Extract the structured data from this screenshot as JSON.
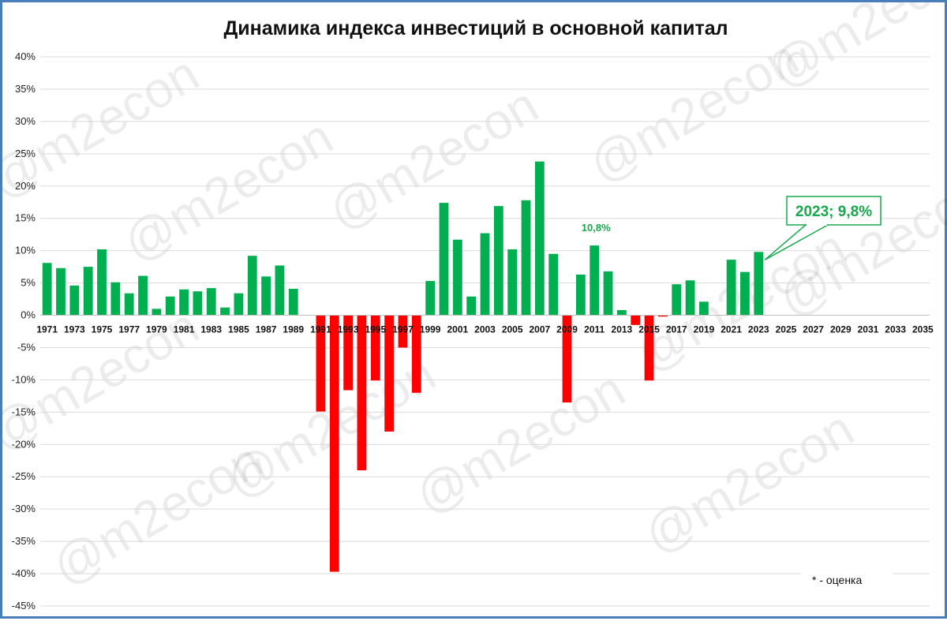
{
  "colors": {
    "positive": "#00b050",
    "negative": "#ff0000",
    "grid": "#d9d9d9",
    "frame": "#4a7ebb",
    "accent": "#18a84e"
  },
  "watermark": "@m2econ",
  "footnote": "* - оценка",
  "chart_data": {
    "type": "bar",
    "title": "Динамика индекса инвестиций в основной капитал",
    "xlabel": "",
    "ylabel": "",
    "ylim": [
      -45,
      40
    ],
    "y_ticks": [
      "40%",
      "35%",
      "30%",
      "25%",
      "20%",
      "15%",
      "10%",
      "5%",
      "0%",
      "-5%",
      "-10%",
      "-15%",
      "-20%",
      "-25%",
      "-30%",
      "-35%",
      "-40%",
      "-45%"
    ],
    "grid": true,
    "categories": [
      "1971",
      "1972",
      "1973",
      "1974",
      "1975",
      "1976",
      "1977",
      "1978",
      "1979",
      "1980",
      "1981",
      "1982",
      "1983",
      "1984",
      "1985",
      "1986",
      "1987",
      "1988",
      "1989",
      "1990",
      "1991",
      "1992",
      "1993",
      "1994",
      "1995",
      "1996",
      "1997",
      "1998",
      "1999",
      "2000",
      "2001",
      "2002",
      "2003",
      "2004",
      "2005",
      "2006",
      "2007",
      "2008",
      "2009",
      "2010",
      "2011",
      "2012",
      "2013",
      "2014",
      "2015",
      "2016",
      "2017",
      "2018",
      "2019",
      "2020",
      "2021",
      "2022",
      "2023",
      "2024",
      "2025",
      "2026",
      "2027",
      "2028",
      "2029",
      "2030",
      "2031",
      "2032",
      "2033",
      "2034",
      "2035"
    ],
    "x_tick_labels": [
      "1971",
      "1973",
      "1975",
      "1977",
      "1979",
      "1981",
      "1983",
      "1985",
      "1987",
      "1989",
      "1991",
      "1993",
      "1995",
      "1997",
      "1999",
      "2001",
      "2003",
      "2005",
      "2007",
      "2009",
      "2011",
      "2013",
      "2015",
      "2017",
      "2019",
      "2021",
      "2023",
      "2025",
      "2027",
      "2029",
      "2031",
      "2033",
      "2035"
    ],
    "values": [
      8.1,
      7.3,
      4.6,
      7.5,
      10.2,
      5.1,
      3.4,
      6.1,
      1.0,
      2.9,
      4.0,
      3.7,
      4.2,
      1.2,
      3.4,
      9.2,
      6.0,
      7.7,
      4.1,
      null,
      -14.9,
      -39.7,
      -11.6,
      -24.0,
      -10.1,
      -18.0,
      -5.0,
      -12.0,
      5.3,
      17.4,
      11.7,
      2.9,
      12.7,
      16.9,
      10.2,
      17.8,
      23.8,
      9.5,
      -13.5,
      6.3,
      10.8,
      6.8,
      0.8,
      -1.5,
      -10.1,
      -0.2,
      4.8,
      5.4,
      2.1,
      null,
      8.6,
      6.7,
      9.8,
      null,
      null,
      null,
      null,
      null,
      null,
      null,
      null,
      null,
      null,
      null,
      null
    ],
    "annotations": [
      {
        "category": "2011",
        "text": "10,8%"
      },
      {
        "category": "2023",
        "text": "2023; 9,8%"
      }
    ]
  }
}
